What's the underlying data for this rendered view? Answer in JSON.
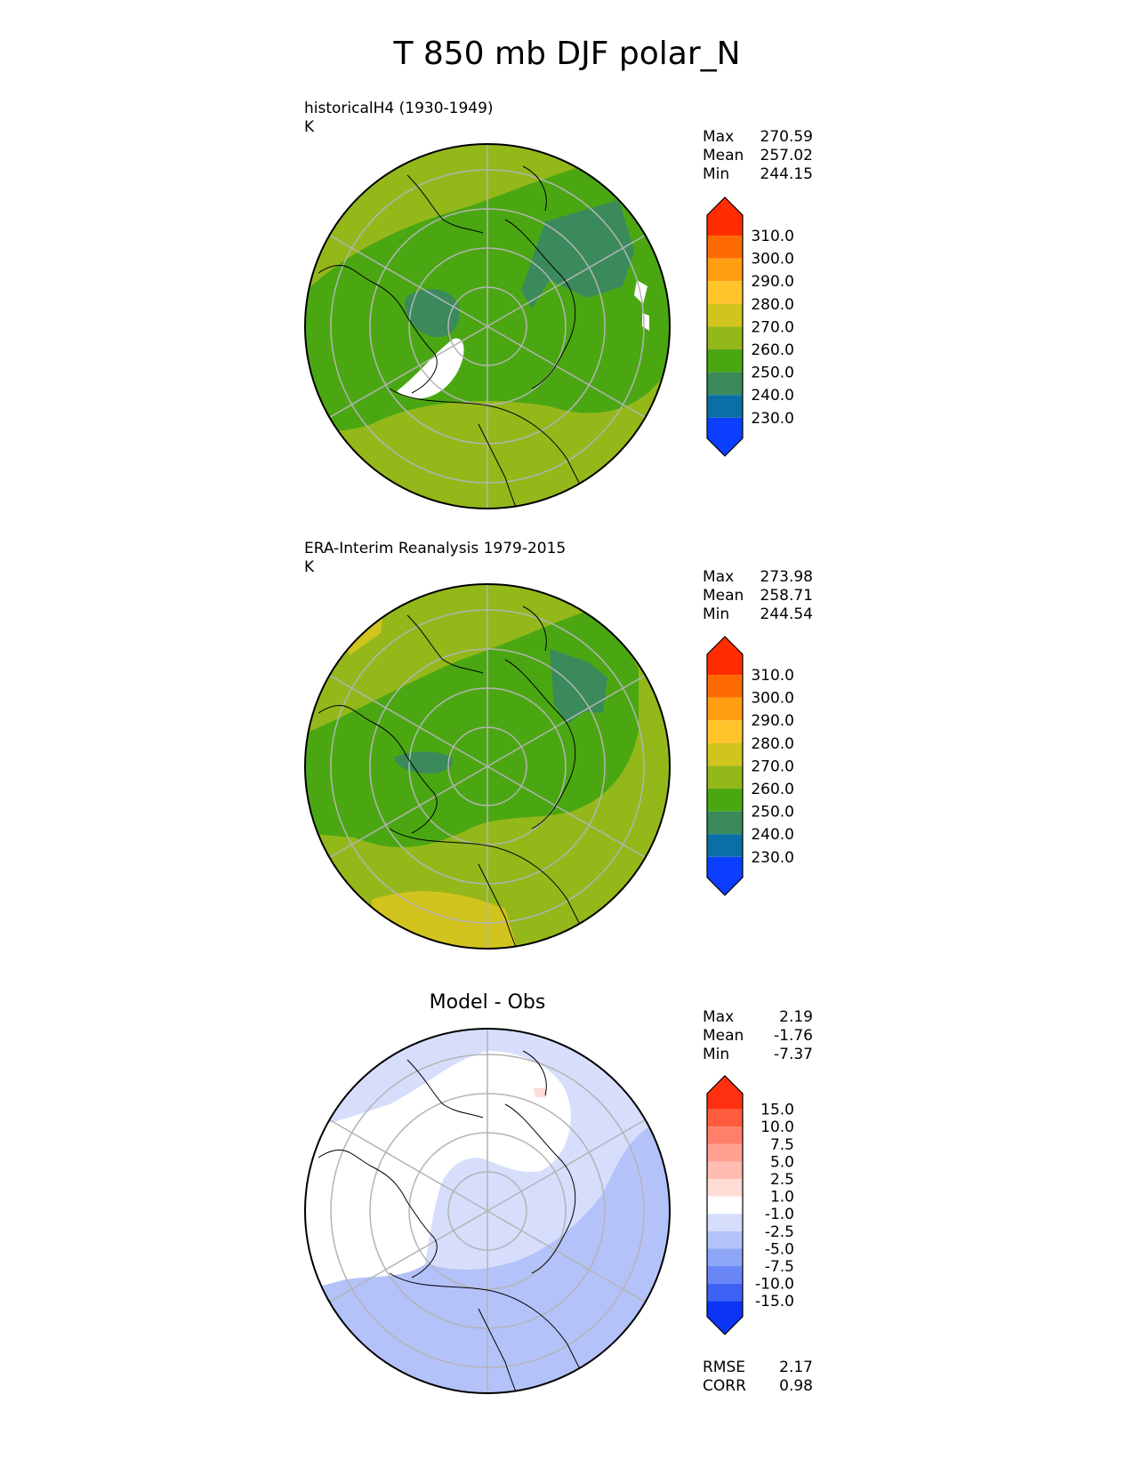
{
  "figure": {
    "title": "T 850 mb DJF polar_N"
  },
  "colors": {
    "land_outline": "#000000",
    "grid": "#b4b4b4",
    "missing": "#ffffff"
  },
  "chart_data": [
    {
      "type": "heatmap",
      "title": "historicalH4 (1930-1949)",
      "units": "K",
      "stats": [
        {
          "label": "Max",
          "value": "270.59"
        },
        {
          "label": "Mean",
          "value": "257.02"
        },
        {
          "label": "Min",
          "value": "244.15"
        }
      ],
      "colorbar": {
        "levels": [
          "310.0",
          "300.0",
          "290.0",
          "280.0",
          "270.0",
          "260.0",
          "250.0",
          "240.0",
          "230.0"
        ],
        "colors": [
          "#ff2d00",
          "#ff6a00",
          "#ff9e10",
          "#ffc42a",
          "#d2c41e",
          "#94b81a",
          "#4aa712",
          "#3a8a5c",
          "#0b6ea6",
          "#0b3eff"
        ],
        "extend": "both"
      }
    },
    {
      "type": "heatmap",
      "title": "ERA-Interim Reanalysis 1979-2015",
      "units": "K",
      "stats": [
        {
          "label": "Max",
          "value": "273.98"
        },
        {
          "label": "Mean",
          "value": "258.71"
        },
        {
          "label": "Min",
          "value": "244.54"
        }
      ],
      "colorbar": {
        "levels": [
          "310.0",
          "300.0",
          "290.0",
          "280.0",
          "270.0",
          "260.0",
          "250.0",
          "240.0",
          "230.0"
        ],
        "colors": [
          "#ff2d00",
          "#ff6a00",
          "#ff9e10",
          "#ffc42a",
          "#d2c41e",
          "#94b81a",
          "#4aa712",
          "#3a8a5c",
          "#0b6ea6",
          "#0b3eff"
        ],
        "extend": "both"
      }
    },
    {
      "type": "heatmap",
      "title": "Model - Obs",
      "stats": [
        {
          "label": "Max",
          "value": "2.19"
        },
        {
          "label": "Mean",
          "value": "-1.76"
        },
        {
          "label": "Min",
          "value": "-7.37"
        }
      ],
      "metrics": [
        {
          "label": "RMSE",
          "value": "2.17"
        },
        {
          "label": "CORR",
          "value": "0.98"
        }
      ],
      "colorbar": {
        "levels": [
          "15.0",
          "10.0",
          "7.5",
          "5.0",
          "2.5",
          "1.0",
          "-1.0",
          "-2.5",
          "-5.0",
          "-7.5",
          "-10.0",
          "-15.0"
        ],
        "colors": [
          "#ff3010",
          "#ff5c3e",
          "#ff7f6a",
          "#ffa090",
          "#ffbcb0",
          "#ffdcd6",
          "#ffffff",
          "#d6defc",
          "#b4c2fa",
          "#8ea6f8",
          "#6a86f6",
          "#3e62f6",
          "#0b34f4"
        ],
        "extend": "both"
      }
    }
  ]
}
